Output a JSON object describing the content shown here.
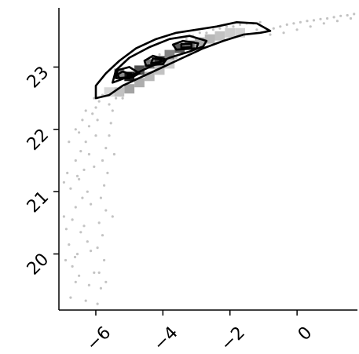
{
  "chart_data": {
    "type": "scatter",
    "title": "",
    "xlabel": "",
    "ylabel": "",
    "xlim": [
      -7.1,
      1.8
    ],
    "ylim": [
      19.1,
      23.95
    ],
    "x_ticks": [
      -6,
      -4,
      -2,
      0
    ],
    "x_tick_labels": [
      "−6",
      "−4",
      "−2",
      "0"
    ],
    "y_ticks": [
      20,
      21,
      22,
      23
    ],
    "y_tick_labels": [
      "20",
      "21",
      "22",
      "23"
    ],
    "tick_label_rotation": 45,
    "grid": false,
    "legend": "none",
    "colors": {
      "points": "#b4b4b4",
      "contour": "#000000",
      "axes": "#000000",
      "hist_dark": "#1a1a1a",
      "hist_light": "#ececec"
    },
    "series": [
      {
        "kind": "scatter",
        "points": [
          [
            -6.75,
            19.3
          ],
          [
            -6.6,
            19.55
          ],
          [
            -6.7,
            19.8
          ],
          [
            -6.55,
            20.0
          ],
          [
            -6.8,
            20.15
          ],
          [
            -6.45,
            20.35
          ],
          [
            -6.7,
            20.55
          ],
          [
            -6.6,
            20.75
          ],
          [
            -6.4,
            20.9
          ],
          [
            -6.75,
            21.05
          ],
          [
            -6.5,
            21.2
          ],
          [
            -6.35,
            21.35
          ],
          [
            -6.6,
            21.5
          ],
          [
            -6.45,
            21.65
          ],
          [
            -6.3,
            21.8
          ],
          [
            -6.5,
            21.95
          ],
          [
            -6.2,
            22.05
          ],
          [
            -6.4,
            22.15
          ],
          [
            -6.1,
            22.25
          ],
          [
            -6.0,
            22.35
          ],
          [
            -6.3,
            22.3
          ],
          [
            -5.9,
            22.45
          ],
          [
            -5.8,
            22.55
          ],
          [
            -6.05,
            22.5
          ],
          [
            -5.95,
            19.2
          ],
          [
            -5.85,
            19.45
          ],
          [
            -5.9,
            19.7
          ],
          [
            -5.75,
            19.9
          ],
          [
            -5.95,
            20.1
          ],
          [
            -5.8,
            20.3
          ],
          [
            -5.9,
            20.5
          ],
          [
            -5.7,
            20.7
          ],
          [
            -5.85,
            20.9
          ],
          [
            -5.75,
            21.1
          ],
          [
            -5.65,
            21.3
          ],
          [
            -5.8,
            21.5
          ],
          [
            -5.7,
            21.7
          ],
          [
            -5.6,
            21.9
          ],
          [
            -5.55,
            22.1
          ],
          [
            -5.5,
            22.3
          ],
          [
            -5.4,
            22.5
          ],
          [
            -6.9,
            19.9
          ],
          [
            -6.95,
            20.6
          ],
          [
            -6.85,
            21.3
          ],
          [
            -6.2,
            19.5
          ],
          [
            -6.25,
            20.2
          ],
          [
            -6.15,
            20.8
          ],
          [
            -6.05,
            21.4
          ],
          [
            -6.0,
            21.9
          ],
          [
            -5.5,
            20.6
          ],
          [
            -5.45,
            21.6
          ],
          [
            -5.3,
            22.55
          ],
          [
            -5.1,
            22.7
          ],
          [
            -4.9,
            22.85
          ],
          [
            -4.7,
            22.95
          ],
          [
            -4.5,
            23.05
          ],
          [
            -4.3,
            23.1
          ],
          [
            -4.1,
            23.2
          ],
          [
            -3.9,
            23.25
          ],
          [
            -3.7,
            23.35
          ],
          [
            -3.5,
            23.4
          ],
          [
            -3.3,
            23.45
          ],
          [
            -3.1,
            23.5
          ],
          [
            -2.9,
            23.55
          ],
          [
            -2.7,
            23.55
          ],
          [
            -2.5,
            23.6
          ],
          [
            -2.3,
            23.62
          ],
          [
            -2.1,
            23.65
          ],
          [
            -1.9,
            23.65
          ],
          [
            -1.7,
            23.68
          ],
          [
            -1.5,
            23.7
          ],
          [
            -1.3,
            23.7
          ],
          [
            -1.1,
            23.72
          ],
          [
            -0.9,
            23.6
          ],
          [
            -0.7,
            23.62
          ],
          [
            -0.5,
            23.65
          ],
          [
            -0.3,
            23.68
          ],
          [
            -0.1,
            23.7
          ],
          [
            0.1,
            23.72
          ],
          [
            0.3,
            23.74
          ],
          [
            0.5,
            23.75
          ],
          [
            0.7,
            23.77
          ],
          [
            0.9,
            23.78
          ],
          [
            1.1,
            23.8
          ],
          [
            1.3,
            23.82
          ],
          [
            1.5,
            23.83
          ],
          [
            1.7,
            23.85
          ],
          [
            -5.6,
            22.4
          ],
          [
            -5.2,
            22.5
          ],
          [
            -4.8,
            22.7
          ],
          [
            -4.4,
            22.85
          ],
          [
            -4.0,
            23.0
          ],
          [
            -3.6,
            23.15
          ],
          [
            -3.2,
            23.3
          ],
          [
            -2.8,
            23.4
          ],
          [
            -2.4,
            23.5
          ],
          [
            -2.0,
            23.5
          ],
          [
            -1.6,
            23.55
          ],
          [
            -1.2,
            23.6
          ],
          [
            -0.8,
            23.52
          ],
          [
            -0.4,
            23.55
          ],
          [
            0.0,
            23.6
          ],
          [
            0.4,
            23.65
          ],
          [
            0.8,
            23.7
          ],
          [
            1.2,
            23.74
          ],
          [
            1.6,
            23.78
          ],
          [
            -6.3,
            19.25
          ],
          [
            -6.5,
            19.65
          ],
          [
            -6.15,
            20.05
          ],
          [
            -6.35,
            20.45
          ],
          [
            -6.25,
            21.0
          ],
          [
            -6.55,
            21.25
          ],
          [
            -6.2,
            21.6
          ],
          [
            -5.95,
            22.15
          ],
          [
            -6.6,
            22.0
          ],
          [
            -6.8,
            21.8
          ],
          [
            -6.95,
            21.15
          ],
          [
            -6.88,
            20.4
          ],
          [
            -6.62,
            19.95
          ],
          [
            -6.05,
            19.7
          ],
          [
            -5.7,
            19.55
          ]
        ]
      },
      {
        "kind": "histogram2d",
        "cells": [
          [
            -5.3,
            22.9,
            0.45
          ],
          [
            -5.0,
            22.85,
            1.0
          ],
          [
            -4.7,
            22.95,
            0.75
          ],
          [
            -4.4,
            23.05,
            0.55
          ],
          [
            -4.1,
            23.1,
            0.85
          ],
          [
            -3.8,
            23.2,
            0.5
          ],
          [
            -3.5,
            23.3,
            0.7
          ],
          [
            -3.2,
            23.35,
            0.6
          ],
          [
            -2.9,
            23.4,
            0.3
          ],
          [
            -2.6,
            23.45,
            0.25
          ],
          [
            -2.3,
            23.5,
            0.2
          ],
          [
            -2.0,
            23.55,
            0.15
          ],
          [
            -1.7,
            23.55,
            0.12
          ],
          [
            -5.3,
            22.6,
            0.2
          ],
          [
            -5.0,
            22.65,
            0.35
          ],
          [
            -4.7,
            22.75,
            0.3
          ],
          [
            -4.4,
            22.85,
            0.25
          ],
          [
            -4.1,
            22.95,
            0.2
          ],
          [
            -3.8,
            23.05,
            0.15
          ],
          [
            -5.6,
            22.6,
            0.1
          ]
        ]
      },
      {
        "kind": "contour",
        "level": 1,
        "path": [
          [
            -6.0,
            22.5
          ],
          [
            -5.6,
            22.55
          ],
          [
            -5.2,
            22.7
          ],
          [
            -4.6,
            22.85
          ],
          [
            -4.0,
            23.0
          ],
          [
            -3.4,
            23.15
          ],
          [
            -2.8,
            23.3
          ],
          [
            -2.2,
            23.42
          ],
          [
            -1.6,
            23.52
          ],
          [
            -1.1,
            23.55
          ],
          [
            -0.8,
            23.58
          ],
          [
            -1.2,
            23.7
          ],
          [
            -1.8,
            23.72
          ],
          [
            -2.4,
            23.65
          ],
          [
            -3.0,
            23.6
          ],
          [
            -3.6,
            23.55
          ],
          [
            -4.2,
            23.45
          ],
          [
            -4.8,
            23.3
          ],
          [
            -5.3,
            23.1
          ],
          [
            -5.7,
            22.9
          ],
          [
            -6.0,
            22.7
          ]
        ]
      },
      {
        "kind": "contour",
        "level": 2,
        "path": [
          [
            -5.5,
            22.75
          ],
          [
            -5.0,
            22.85
          ],
          [
            -4.4,
            23.0
          ],
          [
            -3.8,
            23.15
          ],
          [
            -3.2,
            23.25
          ],
          [
            -2.8,
            23.33
          ],
          [
            -2.7,
            23.42
          ],
          [
            -3.2,
            23.5
          ],
          [
            -3.8,
            23.45
          ],
          [
            -4.4,
            23.32
          ],
          [
            -5.0,
            23.15
          ],
          [
            -5.4,
            22.95
          ]
        ]
      },
      {
        "kind": "contour",
        "level": 3,
        "path": [
          [
            -5.4,
            22.82
          ],
          [
            -4.9,
            22.84
          ],
          [
            -4.7,
            22.9
          ],
          [
            -5.0,
            23.0
          ],
          [
            -5.35,
            22.95
          ]
        ]
      },
      {
        "kind": "contour",
        "level": 3,
        "path": [
          [
            -4.5,
            23.02
          ],
          [
            -4.0,
            23.05
          ],
          [
            -3.9,
            23.12
          ],
          [
            -4.3,
            23.18
          ],
          [
            -4.55,
            23.1
          ]
        ]
      },
      {
        "kind": "contour",
        "level": 3,
        "path": [
          [
            -3.6,
            23.28
          ],
          [
            -3.0,
            23.3
          ],
          [
            -2.95,
            23.38
          ],
          [
            -3.4,
            23.42
          ],
          [
            -3.7,
            23.36
          ]
        ]
      },
      {
        "kind": "contour",
        "level": 4,
        "path": [
          [
            -5.3,
            22.82
          ],
          [
            -5.0,
            22.82
          ],
          [
            -4.95,
            22.88
          ],
          [
            -5.2,
            22.93
          ],
          [
            -5.35,
            22.88
          ]
        ]
      },
      {
        "kind": "contour",
        "level": 4,
        "path": [
          [
            -4.35,
            23.06
          ],
          [
            -4.1,
            23.08
          ],
          [
            -4.05,
            23.12
          ],
          [
            -4.3,
            23.14
          ]
        ]
      },
      {
        "kind": "contour",
        "level": 4,
        "path": [
          [
            -3.45,
            23.31
          ],
          [
            -3.15,
            23.32
          ],
          [
            -3.15,
            23.37
          ],
          [
            -3.45,
            23.37
          ]
        ]
      },
      {
        "kind": "contour",
        "level": 5,
        "path": [
          [
            -5.05,
            22.86
          ],
          [
            -4.95,
            22.86
          ],
          [
            -4.95,
            22.9
          ],
          [
            -5.05,
            22.9
          ]
        ]
      }
    ]
  }
}
